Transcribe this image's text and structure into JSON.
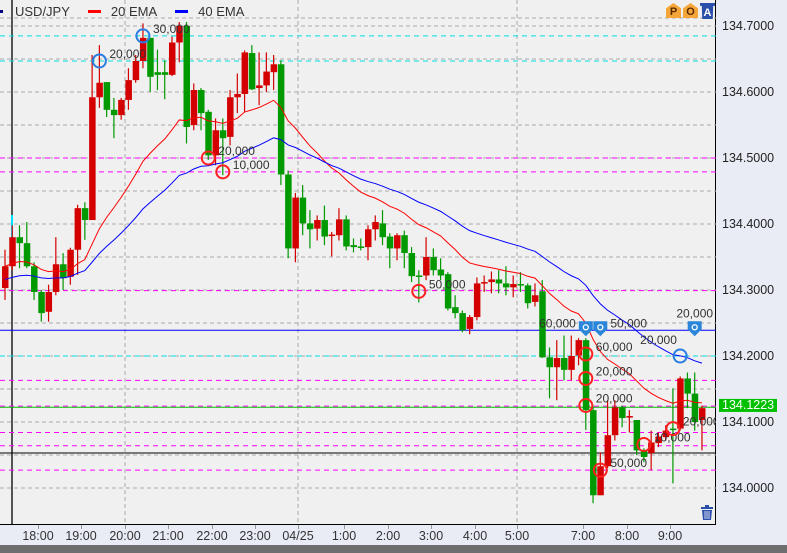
{
  "legend": {
    "symbol": "USD/JPY",
    "indicators": [
      {
        "label": "20 EMA",
        "period": 20,
        "color": "#ff0000"
      },
      {
        "label": "40 EMA",
        "period": 40,
        "color": "#0000ff"
      }
    ]
  },
  "toolbar": {
    "icons": [
      {
        "name": "position-icon",
        "letter": "P"
      },
      {
        "name": "order-icon",
        "letter": "O"
      },
      {
        "name": "delete-all-icon",
        "letter": "A"
      }
    ]
  },
  "last_price": "134.1223",
  "colors": {
    "bull": "#d40000",
    "bear": "#009900",
    "background": "#f0f0f0",
    "last_price": "#00c000"
  },
  "chart_data": {
    "type": "candlestick",
    "symbol": "USD/JPY",
    "interval": "10 min",
    "ylim": [
      133.96,
      134.72
    ],
    "y_ticks": [
      "134.7000",
      "134.6000",
      "134.5000",
      "134.4000",
      "134.3000",
      "134.2000",
      "134.1000",
      "134.0000"
    ],
    "x_ticks": [
      "18:00",
      "19:00",
      "20:00",
      "21:00",
      "22:00",
      "23:00",
      "04/25",
      "1:00",
      "2:00",
      "3:00",
      "4:00",
      "5:00",
      "7:00",
      "8:00",
      "9:00"
    ],
    "grid": true,
    "ohlc": [
      [
        134.303,
        134.361,
        134.285,
        134.336
      ],
      [
        134.336,
        134.398,
        134.33,
        134.38
      ],
      [
        134.38,
        134.398,
        134.333,
        134.371
      ],
      [
        134.371,
        134.403,
        134.333,
        134.336
      ],
      [
        134.336,
        134.342,
        134.285,
        134.297
      ],
      [
        134.297,
        134.3,
        134.252,
        134.265
      ],
      [
        134.267,
        134.308,
        134.252,
        134.297
      ],
      [
        134.297,
        134.38,
        134.292,
        134.339
      ],
      [
        134.339,
        134.356,
        134.3,
        134.318
      ],
      [
        134.32,
        134.364,
        134.308,
        134.361
      ],
      [
        134.361,
        134.429,
        134.323,
        134.424
      ],
      [
        134.424,
        134.433,
        134.376,
        134.406
      ],
      [
        134.406,
        134.656,
        134.406,
        134.592
      ],
      [
        134.592,
        134.671,
        134.576,
        134.614
      ],
      [
        134.615,
        134.615,
        134.562,
        134.573
      ],
      [
        134.573,
        134.591,
        134.53,
        134.565
      ],
      [
        134.565,
        134.591,
        134.558,
        134.588
      ],
      [
        134.588,
        134.636,
        134.573,
        134.618
      ],
      [
        134.618,
        134.656,
        134.614,
        134.647
      ],
      [
        134.647,
        134.704,
        134.636,
        134.682
      ],
      [
        134.682,
        134.682,
        134.6,
        134.623
      ],
      [
        134.63,
        134.664,
        134.603,
        134.626
      ],
      [
        134.63,
        134.648,
        134.589,
        134.626
      ],
      [
        134.626,
        134.684,
        134.624,
        134.675
      ],
      [
        134.675,
        134.706,
        134.645,
        134.7
      ],
      [
        134.7,
        134.706,
        134.522,
        134.547
      ],
      [
        134.55,
        134.613,
        134.542,
        134.603
      ],
      [
        134.603,
        134.606,
        134.542,
        134.568
      ],
      [
        134.57,
        134.573,
        134.497,
        134.504
      ],
      [
        134.504,
        134.56,
        134.489,
        134.542
      ],
      [
        134.542,
        134.56,
        134.474,
        134.53
      ],
      [
        134.532,
        134.603,
        134.519,
        134.592
      ],
      [
        134.592,
        134.628,
        134.568,
        134.597
      ],
      [
        134.597,
        134.663,
        134.569,
        134.66
      ],
      [
        134.659,
        134.671,
        134.603,
        134.604
      ],
      [
        134.606,
        134.66,
        134.58,
        134.61
      ],
      [
        134.61,
        134.66,
        134.6,
        134.631
      ],
      [
        134.63,
        134.656,
        134.603,
        134.642
      ],
      [
        134.642,
        134.648,
        134.459,
        134.475
      ],
      [
        134.475,
        134.481,
        134.348,
        134.363
      ],
      [
        134.363,
        134.447,
        134.342,
        134.44
      ],
      [
        134.44,
        134.459,
        134.383,
        134.401
      ],
      [
        134.401,
        134.421,
        134.363,
        134.392
      ],
      [
        134.393,
        134.413,
        134.375,
        134.406
      ],
      [
        134.406,
        134.428,
        134.368,
        134.381
      ],
      [
        134.383,
        134.388,
        134.351,
        134.384
      ],
      [
        134.383,
        134.424,
        134.375,
        134.407
      ],
      [
        134.407,
        134.413,
        134.36,
        134.366
      ],
      [
        134.368,
        134.378,
        134.357,
        134.365
      ],
      [
        134.366,
        134.378,
        134.36,
        134.365
      ],
      [
        134.365,
        134.398,
        134.345,
        134.392
      ],
      [
        134.392,
        134.413,
        134.375,
        134.403
      ],
      [
        134.401,
        134.421,
        134.368,
        134.38
      ],
      [
        134.381,
        134.386,
        134.333,
        134.363
      ],
      [
        134.363,
        134.386,
        134.345,
        134.383
      ],
      [
        134.383,
        134.39,
        134.333,
        134.356
      ],
      [
        134.356,
        134.365,
        134.312,
        134.321
      ],
      [
        134.322,
        134.33,
        134.281,
        134.321
      ],
      [
        134.322,
        134.38,
        134.315,
        134.35
      ],
      [
        134.35,
        134.363,
        134.322,
        134.33
      ],
      [
        134.331,
        134.348,
        134.315,
        134.322
      ],
      [
        134.324,
        134.327,
        134.269,
        134.272
      ],
      [
        134.274,
        134.292,
        134.257,
        134.265
      ],
      [
        134.265,
        134.269,
        134.236,
        134.239
      ],
      [
        134.241,
        134.262,
        134.233,
        134.259
      ],
      [
        134.259,
        134.319,
        134.254,
        134.31
      ],
      [
        134.31,
        134.322,
        134.297,
        134.312
      ],
      [
        134.312,
        134.328,
        134.295,
        134.316
      ],
      [
        134.316,
        134.33,
        134.295,
        134.31
      ],
      [
        134.31,
        134.336,
        134.292,
        134.304
      ],
      [
        134.304,
        134.322,
        134.289,
        134.309
      ],
      [
        134.309,
        134.327,
        134.297,
        134.307
      ],
      [
        134.307,
        134.31,
        134.272,
        134.28
      ],
      [
        134.282,
        134.31,
        134.275,
        134.292
      ],
      [
        134.298,
        134.315,
        134.197,
        134.198
      ],
      [
        134.198,
        134.213,
        134.136,
        134.183
      ],
      [
        134.183,
        134.224,
        134.133,
        134.197
      ],
      [
        134.197,
        134.231,
        134.163,
        134.179
      ],
      [
        134.179,
        134.231,
        134.163,
        134.2
      ],
      [
        134.201,
        134.227,
        134.186,
        134.224
      ],
      [
        134.224,
        134.227,
        134.088,
        134.118
      ],
      [
        134.118,
        134.125,
        133.977,
        133.989
      ],
      [
        133.989,
        134.054,
        133.989,
        134.033
      ],
      [
        134.033,
        134.133,
        134.03,
        134.08
      ],
      [
        134.08,
        134.133,
        134.072,
        134.122
      ],
      [
        134.122,
        134.125,
        134.092,
        134.106
      ],
      [
        134.107,
        134.118,
        134.084,
        134.109
      ],
      [
        134.103,
        134.103,
        134.05,
        134.057
      ],
      [
        134.057,
        134.06,
        134.039,
        134.047
      ],
      [
        134.053,
        134.087,
        134.027,
        134.069
      ],
      [
        134.068,
        134.084,
        134.062,
        134.078
      ],
      [
        134.077,
        134.095,
        134.072,
        134.087
      ],
      [
        134.09,
        134.151,
        134.007,
        134.089
      ],
      [
        134.09,
        134.169,
        134.087,
        134.166
      ],
      [
        134.166,
        134.175,
        134.121,
        134.143
      ],
      [
        134.143,
        134.175,
        134.087,
        134.1
      ],
      [
        134.103,
        134.125,
        134.057,
        134.121
      ]
    ],
    "price_lines": [
      {
        "price": 134.685,
        "color": "#00e0e0",
        "style": "dashed"
      },
      {
        "price": 134.647,
        "color": "#00e0e0",
        "style": "dashed"
      },
      {
        "price": 134.5,
        "color": "#ff00ff",
        "style": "dashed"
      },
      {
        "price": 134.479,
        "color": "#ff00ff",
        "style": "dashed"
      },
      {
        "price": 134.299,
        "color": "#ff00ff",
        "style": "dashed"
      },
      {
        "price": 134.239,
        "color": "#0000ff",
        "style": "solid"
      },
      {
        "price": 134.2,
        "color": "#00e0e0",
        "style": "dashed"
      },
      {
        "price": 134.163,
        "color": "#ff00ff",
        "style": "dashed"
      },
      {
        "price": 134.124,
        "color": "#ff00ff",
        "style": "dashed"
      },
      {
        "price": 134.1223,
        "color": "#00c000",
        "style": "solid"
      },
      {
        "price": 134.084,
        "color": "#ff00ff",
        "style": "dashed"
      },
      {
        "price": 134.064,
        "color": "#ff00ff",
        "style": "dashed"
      },
      {
        "price": 134.053,
        "color": "#000000",
        "style": "solid"
      },
      {
        "price": 134.027,
        "color": "#ff00ff",
        "style": "dashed"
      }
    ],
    "trade_markers": [
      {
        "bar": 13,
        "price": 134.647,
        "side": "sell",
        "label": "20,000"
      },
      {
        "bar": 19,
        "price": 134.685,
        "side": "sell",
        "label": "30,000"
      },
      {
        "bar": 28,
        "price": 134.5,
        "side": "buy",
        "label": "20,000"
      },
      {
        "bar": 30,
        "price": 134.479,
        "side": "buy",
        "label": "10,000"
      },
      {
        "bar": 57,
        "price": 134.298,
        "side": "buy",
        "label": "50,000"
      },
      {
        "bar": 80,
        "price": 134.203,
        "side": "buy",
        "label": "60,000"
      },
      {
        "bar": 80,
        "price": 134.166,
        "side": "buy",
        "label": "20,000"
      },
      {
        "bar": 80,
        "price": 134.125,
        "side": "buy",
        "label": "20,000"
      },
      {
        "bar": 82,
        "price": 134.027,
        "side": "buy",
        "label": "50,000"
      },
      {
        "bar": 88,
        "price": 134.066,
        "side": "buy",
        "label": "10,000"
      },
      {
        "bar": 92,
        "price": 134.09,
        "side": "buy",
        "label": "20,000"
      },
      {
        "bar": 93,
        "price": 134.2,
        "side": "sell",
        "label": "20,000"
      }
    ],
    "order_pins": [
      {
        "bar": 80,
        "price": 134.239,
        "label": "60,000"
      },
      {
        "bar": 82,
        "price": 134.239,
        "label": "50,000"
      },
      {
        "bar": 95,
        "price": 134.239,
        "label": "20,000"
      }
    ]
  }
}
